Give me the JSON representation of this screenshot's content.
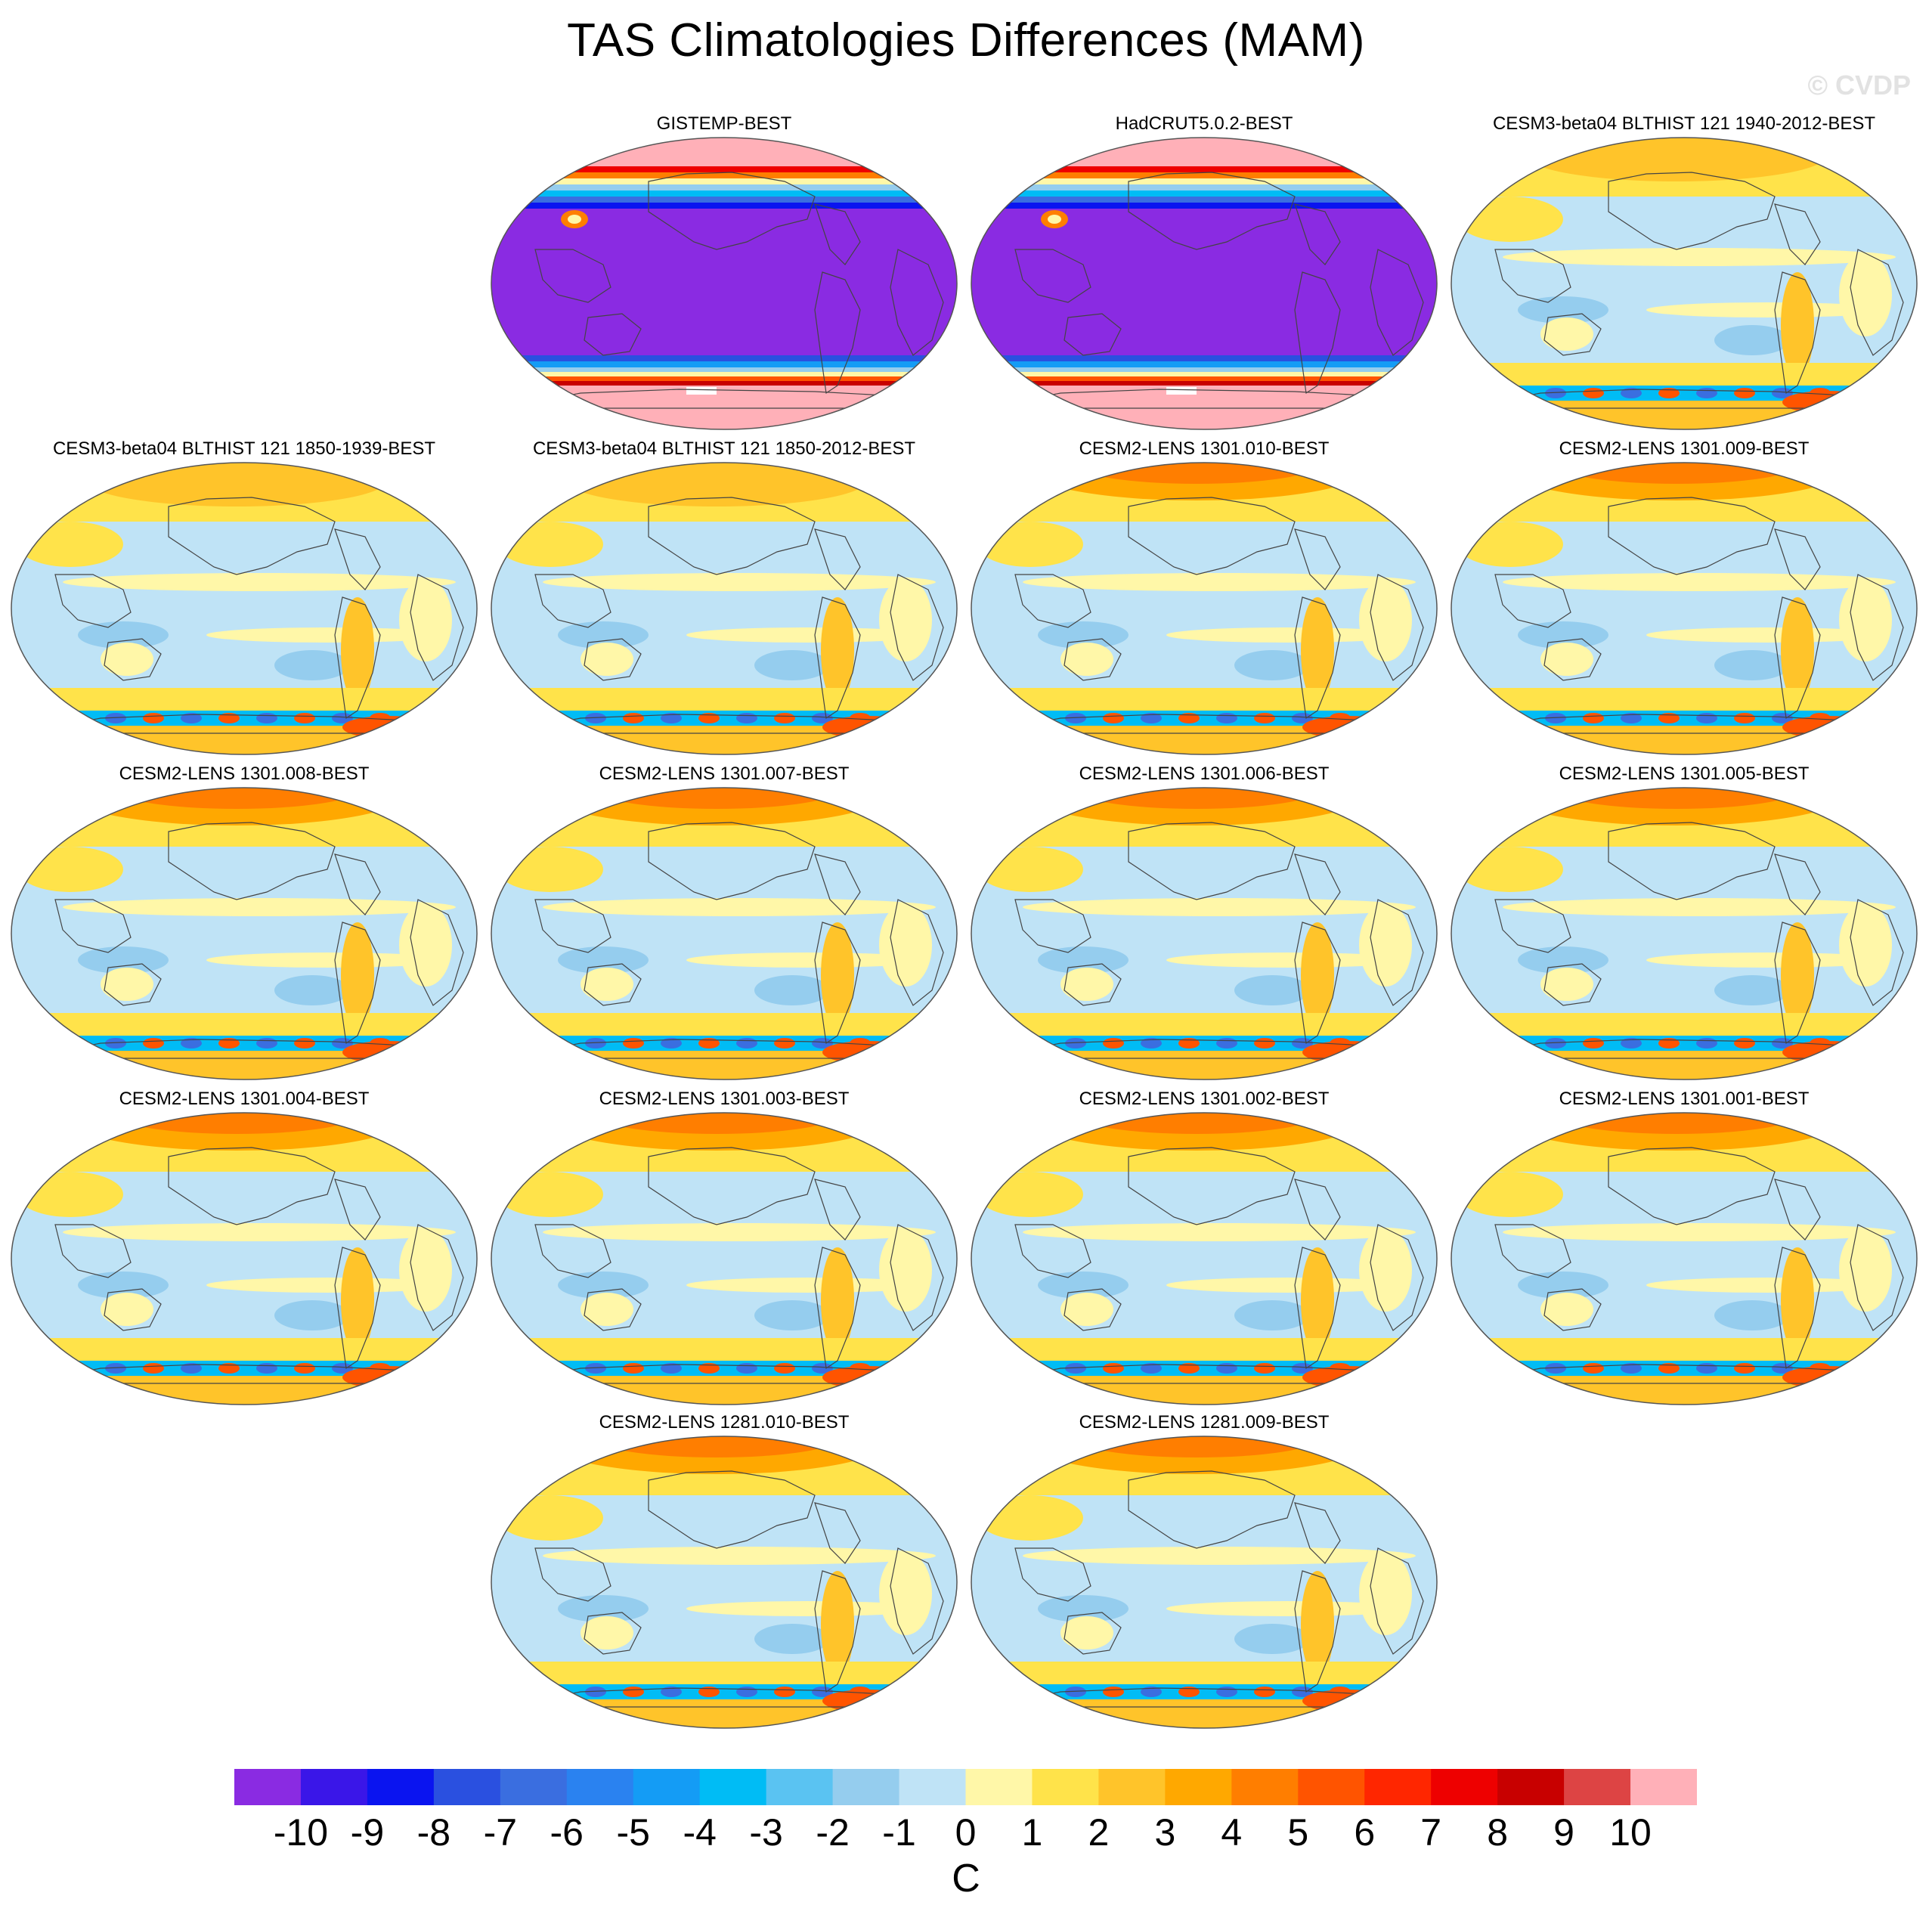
{
  "title": "TAS Climatologies Differences (MAM)",
  "watermark": "© CVDP",
  "panels": [
    {
      "title": "GISTEMP-BEST",
      "pattern": "obs"
    },
    {
      "title": "HadCRUT5.0.2-BEST",
      "pattern": "obs"
    },
    {
      "title": "CESM3-beta04 BLTHIST 121 1940-2012-BEST",
      "pattern": "model3"
    },
    {
      "title": "CESM3-beta04 BLTHIST 121 1850-1939-BEST",
      "pattern": "model3"
    },
    {
      "title": "CESM3-beta04 BLTHIST 121 1850-2012-BEST",
      "pattern": "model3"
    },
    {
      "title": "CESM2-LENS 1301.010-BEST",
      "pattern": "model2"
    },
    {
      "title": "CESM2-LENS 1301.009-BEST",
      "pattern": "model2"
    },
    {
      "title": "CESM2-LENS 1301.008-BEST",
      "pattern": "model2"
    },
    {
      "title": "CESM2-LENS 1301.007-BEST",
      "pattern": "model2"
    },
    {
      "title": "CESM2-LENS 1301.006-BEST",
      "pattern": "model2"
    },
    {
      "title": "CESM2-LENS 1301.005-BEST",
      "pattern": "model2"
    },
    {
      "title": "CESM2-LENS 1301.004-BEST",
      "pattern": "model2"
    },
    {
      "title": "CESM2-LENS 1301.003-BEST",
      "pattern": "model2"
    },
    {
      "title": "CESM2-LENS 1301.002-BEST",
      "pattern": "model2"
    },
    {
      "title": "CESM2-LENS 1301.001-BEST",
      "pattern": "model2"
    },
    {
      "title": "CESM2-LENS 1281.010-BEST",
      "pattern": "model2"
    },
    {
      "title": "CESM2-LENS 1281.009-BEST",
      "pattern": "model2"
    }
  ],
  "colorbar": {
    "units": "C",
    "levels": [
      "-10",
      "-9",
      "-8",
      "-7",
      "-6",
      "-5",
      "-4",
      "-3",
      "-2",
      "-1",
      "0",
      "1",
      "2",
      "3",
      "4",
      "5",
      "6",
      "7",
      "8",
      "9",
      "10"
    ],
    "colors": [
      "#8a2be2",
      "#3a16e8",
      "#0a14f0",
      "#2a50e0",
      "#3a6ee0",
      "#2a82f0",
      "#149cf5",
      "#00bcf5",
      "#5ac3f2",
      "#95cdee",
      "#bfe3f6",
      "#fff7a8",
      "#ffe34a",
      "#ffc42a",
      "#ffa800",
      "#ff7e00",
      "#ff5400",
      "#ff2600",
      "#ee0000",
      "#c80000",
      "#dd4444",
      "#ffb0b8"
    ]
  }
}
